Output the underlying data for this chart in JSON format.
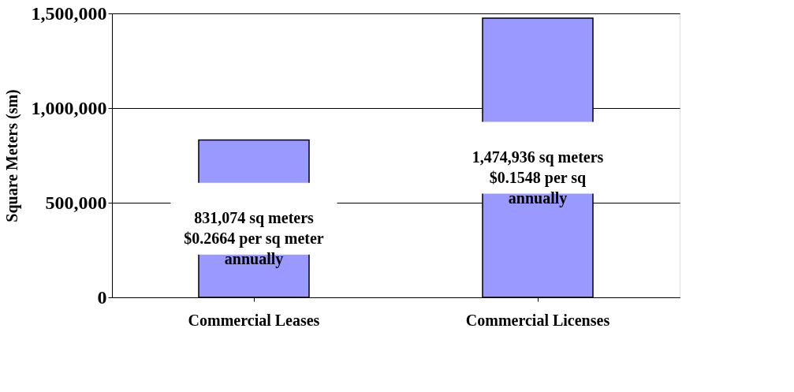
{
  "chart_data": {
    "type": "bar",
    "ylabel": "Square Meters (sm)",
    "categories": [
      "Commercial Leases",
      "Commercial Licenses"
    ],
    "values": [
      831074,
      1474936
    ],
    "color": "#9999ff",
    "value_labels": [
      "831,074 sq meters\n$0.2664 per sq meter\nannually",
      "1,474,936 sq meters\n$0.1548 per sq\nannually"
    ],
    "ylim": [
      0,
      1500000
    ],
    "yticks": [
      0,
      {
        "value": 500000,
        "label": "500,000"
      },
      {
        "value": 1000000,
        "label": "1,000,000"
      },
      {
        "value": 1500000,
        "label": "1,500,000"
      }
    ],
    "grid": "y"
  }
}
